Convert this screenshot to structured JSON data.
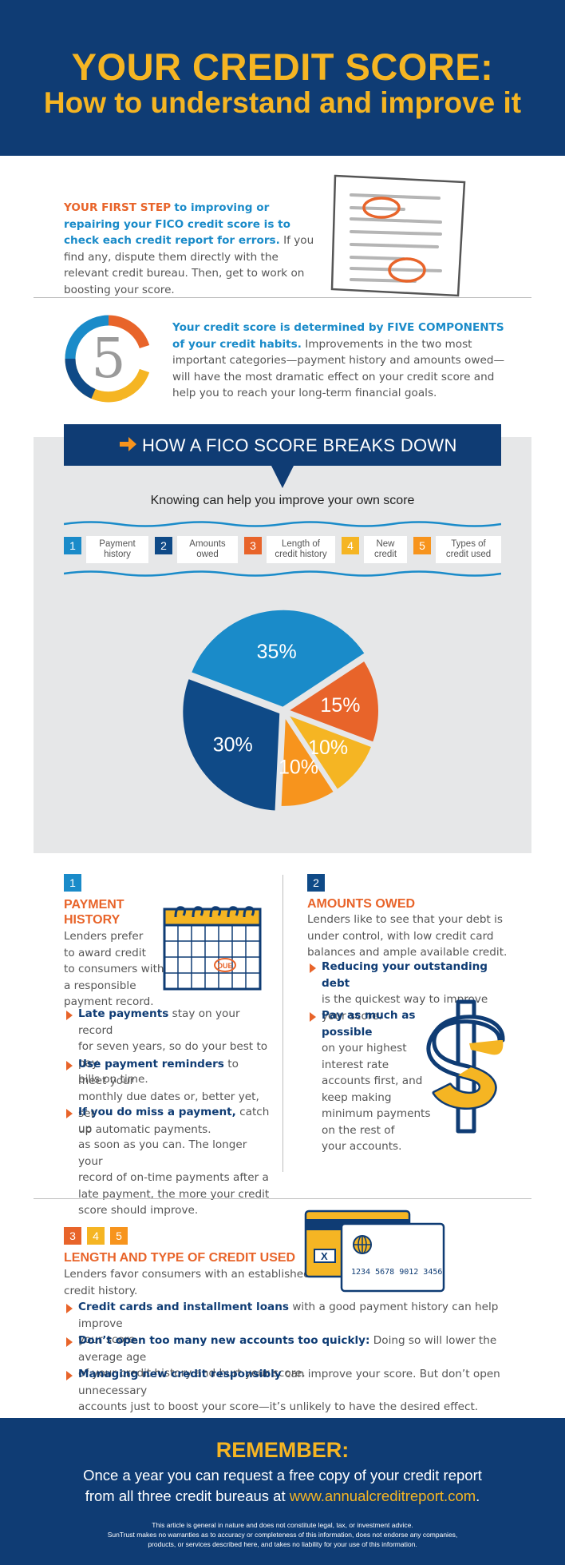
{
  "header": {
    "title": "YOUR CREDIT SCORE:",
    "subtitle": "How to understand and improve it"
  },
  "intro": {
    "lead_orange": "YOUR FIRST STEP",
    "lead_blue": "to improving or repairing your FICO credit score is to check each credit report for errors.",
    "rest": "If you find any, dispute them directly with the relevant credit bureau. Then, get to work on boosting your score."
  },
  "components": {
    "number": "5",
    "lead": "Your credit score is determined by FIVE COMPONENTS of your credit habits.",
    "rest": "Improvements in the two most important categories—payment history and amounts owed—will have the most dramatic effect on your credit score and help you to reach your long-term financial goals."
  },
  "breakdown": {
    "title": "HOW A FICO SCORE BREAKS DOWN",
    "subtitle": "Knowing can help you improve your own score",
    "legend": [
      {
        "num": "1",
        "label_1": "Payment",
        "label_2": "history",
        "color": "#1a8bc9"
      },
      {
        "num": "2",
        "label_1": "Amounts",
        "label_2": "owed",
        "color": "#0f4a87"
      },
      {
        "num": "3",
        "label_1": "Length of",
        "label_2": "credit history",
        "color": "#e8642a"
      },
      {
        "num": "4",
        "label_1": "New",
        "label_2": "credit",
        "color": "#f5b523"
      },
      {
        "num": "5",
        "label_1": "Types of",
        "label_2": "credit used",
        "color": "#f7941d"
      }
    ]
  },
  "chart_data": {
    "type": "pie",
    "categories": [
      "Payment history",
      "Amounts owed",
      "Length of credit history",
      "New credit",
      "Types of credit used"
    ],
    "values": [
      35,
      30,
      15,
      10,
      10
    ],
    "labels": [
      "35%",
      "30%",
      "15%",
      "10%",
      "10%"
    ],
    "colors": [
      "#1a8bc9",
      "#0f4a87",
      "#e8642a",
      "#f5b523",
      "#f7941d"
    ]
  },
  "payment_history": {
    "num": "1",
    "title_1": "PAYMENT",
    "title_2": "HISTORY",
    "intro": [
      "Lenders prefer",
      "to award credit",
      "to consumers with",
      "a responsible",
      "payment record."
    ],
    "calendar_tag": "DUE",
    "bullets": [
      {
        "bold": "Late payments",
        "lines": [
          "stay on your record",
          "for seven years, so do your best to pay",
          "bills on time."
        ]
      },
      {
        "bold": "Use payment reminders",
        "lines": [
          "to meet your",
          "monthly due dates or, better yet, set",
          "up automatic payments."
        ]
      },
      {
        "bold": "If you do miss a payment,",
        "lines": [
          "catch up",
          "as soon as you can. The longer your",
          "record of on-time payments after a",
          "late payment, the more your credit",
          "score should improve."
        ]
      }
    ]
  },
  "amounts_owed": {
    "num": "2",
    "title": "AMOUNTS OWED",
    "intro": [
      "Lenders like to see that your debt is",
      "under control, with low credit card",
      "balances and ample available credit."
    ],
    "bullets": [
      {
        "bold": "Reducing your outstanding debt",
        "lines": [
          "is the quickest way to improve",
          "your score."
        ]
      },
      {
        "bold": "Pay as much as possible",
        "lines": [
          "on your highest",
          "interest rate",
          "accounts first, and",
          "keep making",
          "minimum payments",
          "on the rest of",
          "your accounts."
        ]
      }
    ]
  },
  "credit_used": {
    "nums": [
      "3",
      "4",
      "5"
    ],
    "title": "LENGTH AND TYPE OF CREDIT USED",
    "intro": [
      "Lenders favor consumers with an established",
      "credit history."
    ],
    "card_number": "1234 5678 9012 3456",
    "bullets": [
      {
        "bold": "Credit cards and installment loans",
        "lines": [
          "with a good payment history can help improve",
          "your score."
        ]
      },
      {
        "bold": "Don’t open too many new accounts too quickly:",
        "lines": [
          "Doing so will lower the average age",
          "of your credit history and hurt your score."
        ]
      },
      {
        "bold": "Managing new credit responsibly",
        "lines": [
          "can improve your score. But don’t open unnecessary",
          "accounts just to boost your score—it’s unlikely to have the desired effect."
        ]
      }
    ]
  },
  "footer": {
    "remember": "REMEMBER:",
    "line1": "Once a year you can request a free copy of your credit report",
    "line2": "from all three credit bureaus at",
    "url": "www.annualcreditreport.com",
    "period": ".",
    "disclaimer": [
      "This article is general in nature and does not constitute legal, tax, or investment advice.",
      "SunTrust makes no warranties as to accuracy or completeness of this information, does not endorse any companies,",
      "products, or services described here, and takes no liability for your use of this information."
    ]
  },
  "colors": {
    "navy": "#0f3c74",
    "gold": "#f5b523",
    "orange": "#e8642a",
    "blue": "#1a8bc9",
    "panel_gray": "#e6e7e8"
  }
}
